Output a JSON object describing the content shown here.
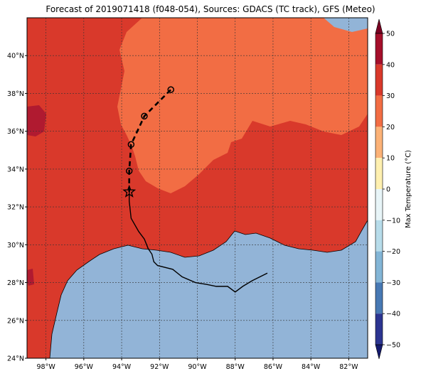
{
  "title": "Forecast of 2019071418 (f048-054), Sources: GDACS (TC track), GFS (Meteo)",
  "map": {
    "lon_range": [
      -99,
      -81
    ],
    "lat_range": [
      24,
      42
    ],
    "lon_ticks": [
      "98°W",
      "96°W",
      "94°W",
      "92°W",
      "90°W",
      "88°W",
      "86°W",
      "84°W",
      "82°W"
    ],
    "lat_ticks": [
      "24°N",
      "26°N",
      "28°N",
      "30°N",
      "32°N",
      "34°N",
      "36°N",
      "38°N",
      "40°N"
    ],
    "grid": true,
    "colors": {
      "ocean": "#92b4d7",
      "temp_30_40": "#d9392b",
      "temp_20_30": "#f26d44",
      "temp_40_50": "#b01a30",
      "track": "#000000"
    },
    "track_past": [
      {
        "lon": -86.3,
        "lat": 28.5
      },
      {
        "lon": -87.1,
        "lat": 28.1
      },
      {
        "lon": -87.6,
        "lat": 27.8
      },
      {
        "lon": -88.0,
        "lat": 27.5
      },
      {
        "lon": -88.4,
        "lat": 27.8
      },
      {
        "lon": -89.0,
        "lat": 27.8
      },
      {
        "lon": -89.5,
        "lat": 27.9
      },
      {
        "lon": -90.1,
        "lat": 28.0
      },
      {
        "lon": -90.8,
        "lat": 28.3
      },
      {
        "lon": -91.3,
        "lat": 28.7
      },
      {
        "lon": -92.1,
        "lat": 28.9
      },
      {
        "lon": -92.3,
        "lat": 29.1
      },
      {
        "lon": -92.4,
        "lat": 29.5
      },
      {
        "lon": -92.6,
        "lat": 29.8
      },
      {
        "lon": -92.8,
        "lat": 30.3
      },
      {
        "lon": -93.1,
        "lat": 30.7
      },
      {
        "lon": -93.5,
        "lat": 31.4
      },
      {
        "lon": -93.6,
        "lat": 32.3
      },
      {
        "lon": -93.6,
        "lat": 32.8
      }
    ],
    "current_position": {
      "lon": -93.6,
      "lat": 32.8
    },
    "forecast_points": [
      {
        "lon": -93.6,
        "lat": 33.9
      },
      {
        "lon": -93.5,
        "lat": 35.3
      },
      {
        "lon": -92.8,
        "lat": 36.8
      },
      {
        "lon": -91.4,
        "lat": 38.2
      }
    ]
  },
  "colorbar": {
    "label": "Max Temperature (°C)",
    "ticks": [
      "50",
      "40",
      "30",
      "20",
      "10",
      "0",
      "−10",
      "−20",
      "−30",
      "−40",
      "−50"
    ],
    "bands": [
      {
        "from": 40,
        "to": 50,
        "color": "#a50f2b"
      },
      {
        "from": 30,
        "to": 40,
        "color": "#d9392b"
      },
      {
        "from": 20,
        "to": 30,
        "color": "#f26d44"
      },
      {
        "from": 10,
        "to": 20,
        "color": "#fcb277"
      },
      {
        "from": 0,
        "to": 10,
        "color": "#fff0b0"
      },
      {
        "from": -10,
        "to": 0,
        "color": "#e8f5f8"
      },
      {
        "from": -20,
        "to": -10,
        "color": "#b7dcea"
      },
      {
        "from": -30,
        "to": -20,
        "color": "#83b5d6"
      },
      {
        "from": -40,
        "to": -30,
        "color": "#4879b4"
      },
      {
        "from": -50,
        "to": -40,
        "color": "#2c3591"
      }
    ],
    "extend_max_color": "#7a0022",
    "extend_min_color": "#141a6e"
  }
}
